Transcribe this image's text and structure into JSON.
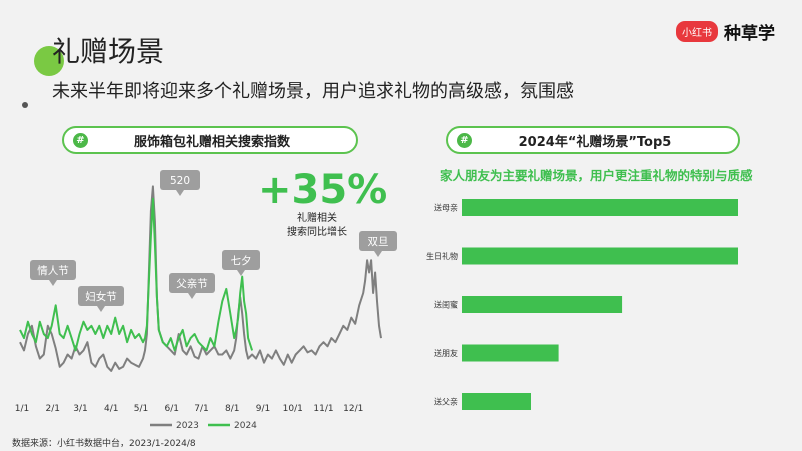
{
  "header": {
    "title": "礼赠场景",
    "subtitle": "未来半年即将迎来多个礼赠场景，用户追求礼物的高级感，氛围感",
    "brand_badge": "小红书",
    "brand_name": "种草学"
  },
  "left_panel": {
    "pill_hash": "#",
    "pill_title": "服饰箱包礼赠相关搜索指数",
    "growth_value": "+35%",
    "growth_note_1": "礼赠相关",
    "growth_note_2": "搜索同比增长"
  },
  "right_panel": {
    "pill_hash": "#",
    "pill_title": "2024年“礼赠场景”Top5",
    "subtitle": "家人朋友为主要礼赠场景，用户更注重礼物的特别与质感"
  },
  "footer": {
    "source": "数据来源：小红书数据中台，2023/1-2024/8"
  },
  "colors": {
    "green": "#3fbf4f",
    "gray": "#7f7f7f",
    "callout": "#9e9e9e",
    "accent_dot": "#7ac943",
    "brand_red": "#e8383d"
  },
  "chart_data": [
    {
      "type": "line",
      "title": "服饰箱包礼赠相关搜索指数",
      "x_ticks": [
        "1/1",
        "2/1",
        "3/1",
        "4/1",
        "5/1",
        "6/1",
        "7/1",
        "8/1",
        "9/1",
        "10/1",
        "11/1",
        "12/1"
      ],
      "x_range": [
        0,
        365
      ],
      "y_range": [
        0,
        100
      ],
      "grid": false,
      "legend_position": "bottom",
      "series": [
        {
          "name": "2023",
          "color": "#7f7f7f",
          "x": [
            0,
            4,
            8,
            12,
            16,
            20,
            24,
            28,
            32,
            36,
            40,
            44,
            48,
            52,
            56,
            60,
            64,
            68,
            72,
            76,
            80,
            84,
            88,
            92,
            96,
            100,
            104,
            108,
            112,
            116,
            120,
            124,
            126,
            128,
            130,
            132,
            134,
            136,
            138,
            140,
            144,
            148,
            152,
            156,
            160,
            164,
            168,
            172,
            176,
            180,
            184,
            188,
            192,
            196,
            200,
            204,
            208,
            212,
            216,
            218,
            220,
            222,
            224,
            226,
            228,
            230,
            234,
            238,
            242,
            246,
            250,
            254,
            258,
            262,
            266,
            270,
            274,
            278,
            282,
            286,
            290,
            294,
            298,
            302,
            306,
            310,
            314,
            318,
            322,
            326,
            330,
            334,
            338,
            342,
            346,
            348,
            350,
            352,
            354,
            356,
            358,
            360,
            362,
            364
          ],
          "values": [
            16,
            12,
            20,
            24,
            14,
            8,
            10,
            24,
            20,
            13,
            4,
            6,
            10,
            8,
            14,
            10,
            12,
            16,
            6,
            4,
            8,
            10,
            4,
            2,
            6,
            3,
            4,
            8,
            6,
            5,
            4,
            8,
            12,
            20,
            50,
            80,
            92,
            75,
            38,
            22,
            16,
            14,
            12,
            10,
            20,
            12,
            10,
            14,
            9,
            8,
            14,
            10,
            12,
            14,
            10,
            10,
            12,
            8,
            12,
            18,
            30,
            38,
            30,
            20,
            12,
            8,
            10,
            8,
            12,
            6,
            10,
            8,
            12,
            8,
            5,
            10,
            6,
            10,
            12,
            14,
            11,
            12,
            10,
            14,
            16,
            14,
            18,
            16,
            20,
            24,
            22,
            28,
            25,
            34,
            40,
            46,
            56,
            50,
            56,
            40,
            50,
            36,
            24,
            18
          ]
        },
        {
          "name": "2024",
          "color": "#3fbf4f",
          "x": [
            0,
            4,
            8,
            12,
            16,
            20,
            24,
            28,
            32,
            36,
            40,
            44,
            48,
            52,
            56,
            60,
            64,
            68,
            72,
            76,
            80,
            84,
            88,
            92,
            96,
            100,
            104,
            108,
            112,
            116,
            120,
            124,
            126,
            128,
            130,
            132,
            134,
            136,
            138,
            140,
            144,
            148,
            152,
            156,
            160,
            164,
            168,
            172,
            176,
            180,
            184,
            188,
            192,
            196,
            200,
            204,
            208,
            212,
            216,
            218,
            220,
            222,
            224,
            226,
            228,
            230,
            234
          ],
          "values": [
            22,
            18,
            26,
            20,
            16,
            26,
            20,
            18,
            24,
            34,
            20,
            18,
            24,
            18,
            12,
            20,
            26,
            22,
            24,
            20,
            24,
            18,
            24,
            20,
            28,
            20,
            24,
            16,
            22,
            18,
            20,
            16,
            18,
            24,
            46,
            68,
            86,
            64,
            38,
            22,
            16,
            14,
            18,
            12,
            18,
            22,
            14,
            18,
            20,
            16,
            14,
            12,
            18,
            14,
            26,
            36,
            42,
            30,
            18,
            22,
            28,
            40,
            48,
            36,
            30,
            18,
            12
          ]
        }
      ],
      "annotations": [
        "情人节",
        "妇女节",
        "520",
        "父亲节",
        "七夕",
        "双旦"
      ]
    },
    {
      "type": "bar",
      "orientation": "horizontal",
      "title": "2024年“礼赠场景”Top5",
      "categories": [
        "送母亲",
        "生日礼物",
        "送闺蜜",
        "送朋友",
        "送父亲"
      ],
      "values": [
        100,
        100,
        58,
        35,
        25
      ],
      "xlim": [
        0,
        100
      ],
      "grid": false,
      "color": "#3fbf4f"
    }
  ]
}
